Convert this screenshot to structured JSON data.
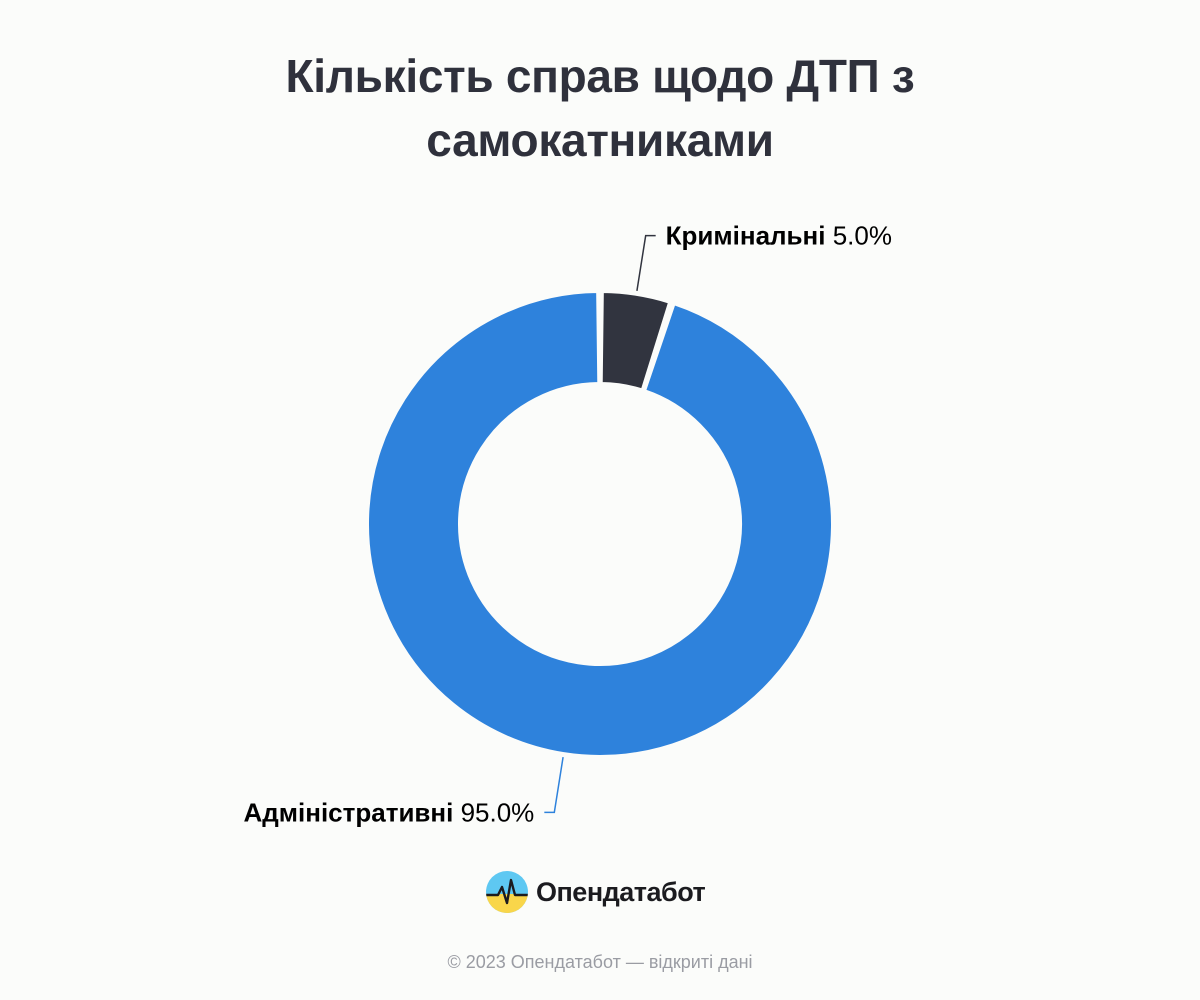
{
  "title_lines": [
    "Кількість справ щодо ДТП з",
    "самокатниками"
  ],
  "chart_data": {
    "type": "pie",
    "donut": true,
    "title": "Кількість справ щодо ДТП з самокатниками",
    "slices": [
      {
        "label": "Кримінальні",
        "value": 5.0,
        "percent_text": "5.0%",
        "color": "#31343f"
      },
      {
        "label": "Адміністративні",
        "value": 95.0,
        "percent_text": "95.0%",
        "color": "#2e82dc"
      }
    ]
  },
  "logo": {
    "text": "Опендатабот",
    "icon": "opendatabot-logo-icon"
  },
  "footer": {
    "copyright": "© 2023 Опендатабот — відкриті дані"
  }
}
